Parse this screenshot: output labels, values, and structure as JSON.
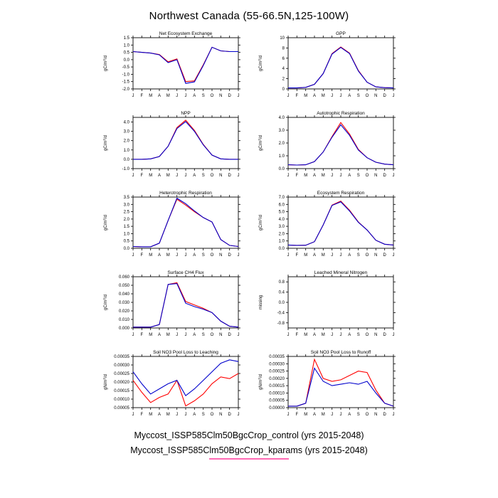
{
  "page_title": "Northwest Canada (55-66.5N,125-100W)",
  "months": [
    "J",
    "F",
    "M",
    "A",
    "M",
    "J",
    "J",
    "A",
    "S",
    "O",
    "N",
    "D",
    "J"
  ],
  "colors": {
    "control": "#ff0000",
    "kparams": "#0000cc",
    "legend_underline": "#ff69b4"
  },
  "chart_data": [
    {
      "type": "line",
      "title": "Net Ecosystem Exchange",
      "ylabel": "gC/m^2/d",
      "ylim": [
        -2.0,
        1.5
      ],
      "yticks": [
        1.5,
        1.0,
        0.5,
        0.0,
        -0.5,
        -1.0,
        -1.5,
        -2.0
      ],
      "ytick_labels": [
        "1.5",
        "1.0",
        "0.5",
        "0.0",
        "-0.5",
        "-1.0",
        "-1.5",
        "-2.0"
      ],
      "series": [
        {
          "name": "control",
          "color": "#ff0000",
          "values": [
            0.55,
            0.5,
            0.45,
            0.35,
            -0.15,
            0.05,
            -1.5,
            -1.45,
            -0.35,
            0.85,
            0.6,
            0.55,
            0.55
          ]
        },
        {
          "name": "kparams",
          "color": "#0000cc",
          "values": [
            0.55,
            0.5,
            0.45,
            0.33,
            -0.2,
            0.0,
            -1.62,
            -1.52,
            -0.4,
            0.85,
            0.6,
            0.55,
            0.55
          ]
        }
      ]
    },
    {
      "type": "line",
      "title": "GPP",
      "ylabel": "gC/m^2/d",
      "ylim": [
        0,
        10
      ],
      "yticks": [
        10,
        8,
        6,
        4,
        2,
        0
      ],
      "ytick_labels": [
        "10",
        "8",
        "6",
        "4",
        "2",
        "0"
      ],
      "series": [
        {
          "name": "control",
          "color": "#ff0000",
          "values": [
            0.2,
            0.2,
            0.3,
            0.9,
            3.0,
            6.9,
            8.2,
            7.0,
            3.6,
            1.3,
            0.4,
            0.25,
            0.2
          ]
        },
        {
          "name": "kparams",
          "color": "#0000cc",
          "values": [
            0.2,
            0.2,
            0.3,
            0.9,
            3.0,
            6.8,
            8.1,
            6.9,
            3.5,
            1.3,
            0.4,
            0.25,
            0.2
          ]
        }
      ]
    },
    {
      "type": "line",
      "title": "NPP",
      "ylabel": "gC/m^2/d",
      "ylim": [
        -1.0,
        4.5
      ],
      "yticks": [
        4.0,
        3.0,
        2.0,
        1.0,
        0.0,
        -1.0
      ],
      "ytick_labels": [
        "4.0",
        "3.0",
        "2.0",
        "1.0",
        "0.0",
        "-1.0"
      ],
      "series": [
        {
          "name": "control",
          "color": "#ff0000",
          "values": [
            0.0,
            0.0,
            0.05,
            0.3,
            1.4,
            3.4,
            4.2,
            3.1,
            1.6,
            0.45,
            0.05,
            0.0,
            0.0
          ]
        },
        {
          "name": "kparams",
          "color": "#0000cc",
          "values": [
            0.0,
            0.0,
            0.05,
            0.3,
            1.4,
            3.3,
            4.05,
            3.0,
            1.55,
            0.45,
            0.05,
            0.0,
            0.0
          ]
        }
      ]
    },
    {
      "type": "line",
      "title": "Autotrophic Respiration",
      "ylabel": "gC/m^2/d",
      "ylim": [
        0.0,
        4.0
      ],
      "yticks": [
        4.0,
        3.0,
        2.0,
        1.0,
        0.0
      ],
      "ytick_labels": [
        "4.0",
        "3.0",
        "2.0",
        "1.0",
        "0.0"
      ],
      "series": [
        {
          "name": "control",
          "color": "#ff0000",
          "values": [
            0.3,
            0.28,
            0.3,
            0.55,
            1.3,
            2.5,
            3.6,
            2.7,
            1.5,
            0.85,
            0.5,
            0.35,
            0.3
          ]
        },
        {
          "name": "kparams",
          "color": "#0000cc",
          "values": [
            0.3,
            0.28,
            0.3,
            0.55,
            1.3,
            2.45,
            3.42,
            2.6,
            1.45,
            0.85,
            0.5,
            0.35,
            0.3
          ]
        }
      ]
    },
    {
      "type": "line",
      "title": "Heterotrophic Respiration",
      "ylabel": "gC/m^2/d",
      "ylim": [
        0.0,
        3.5
      ],
      "yticks": [
        3.5,
        3.0,
        2.5,
        2.0,
        1.5,
        1.0,
        0.5,
        0.0
      ],
      "ytick_labels": [
        "3.5",
        "3.0",
        "2.5",
        "2.0",
        "1.5",
        "1.0",
        "0.5",
        "0.0"
      ],
      "series": [
        {
          "name": "control",
          "color": "#ff0000",
          "values": [
            0.12,
            0.1,
            0.1,
            0.35,
            1.9,
            3.35,
            2.95,
            2.5,
            2.1,
            1.8,
            0.6,
            0.2,
            0.12
          ]
        },
        {
          "name": "kparams",
          "color": "#0000cc",
          "values": [
            0.12,
            0.1,
            0.1,
            0.35,
            1.9,
            3.42,
            3.05,
            2.55,
            2.1,
            1.8,
            0.6,
            0.2,
            0.12
          ]
        }
      ]
    },
    {
      "type": "line",
      "title": "Ecosystem Respiration",
      "ylabel": "gC/m^2/d",
      "ylim": [
        0.0,
        7.0
      ],
      "yticks": [
        7.0,
        6.0,
        5.0,
        4.0,
        3.0,
        2.0,
        1.0,
        0.0
      ],
      "ytick_labels": [
        "7.0",
        "6.0",
        "5.0",
        "4.0",
        "3.0",
        "2.0",
        "1.0",
        "0.0"
      ],
      "series": [
        {
          "name": "control",
          "color": "#ff0000",
          "values": [
            0.45,
            0.4,
            0.42,
            0.9,
            3.2,
            5.9,
            6.45,
            5.2,
            3.6,
            2.5,
            1.1,
            0.55,
            0.45
          ]
        },
        {
          "name": "kparams",
          "color": "#0000cc",
          "values": [
            0.45,
            0.4,
            0.42,
            0.9,
            3.2,
            5.85,
            6.35,
            5.1,
            3.55,
            2.5,
            1.1,
            0.55,
            0.45
          ]
        }
      ]
    },
    {
      "type": "line",
      "title": "Surface CH4 Flux",
      "ylabel": "gC/m^2/d",
      "ylim": [
        0.0,
        0.06
      ],
      "yticks": [
        0.06,
        0.05,
        0.04,
        0.03,
        0.02,
        0.01,
        0.0
      ],
      "ytick_labels": [
        "0.060",
        "0.050",
        "0.040",
        "0.030",
        "0.020",
        "0.010",
        "0.000"
      ],
      "series": [
        {
          "name": "control",
          "color": "#ff0000",
          "values": [
            0.001,
            0.001,
            0.001,
            0.004,
            0.051,
            0.053,
            0.031,
            0.027,
            0.023,
            0.018,
            0.008,
            0.002,
            0.001
          ]
        },
        {
          "name": "kparams",
          "color": "#0000cc",
          "values": [
            0.001,
            0.001,
            0.001,
            0.004,
            0.051,
            0.052,
            0.029,
            0.025,
            0.022,
            0.018,
            0.008,
            0.002,
            0.001
          ]
        }
      ]
    },
    {
      "type": "line",
      "title": "Leached Mineral Nitrogen",
      "ylabel": "missing",
      "ylim": [
        -1.0,
        1.0
      ],
      "yticks": [
        0.8,
        0.4,
        0.0,
        -0.4,
        -0.8
      ],
      "ytick_labels": [
        "0.8",
        "0.4",
        "0.0",
        "-0.4",
        "-0.8"
      ],
      "series": []
    },
    {
      "type": "line",
      "title": "Soil NO3 Pool Loss to Leaching",
      "ylabel": "gN/m^2/d",
      "ylim": [
        5e-05,
        0.00035
      ],
      "yticks": [
        0.00035,
        0.0003,
        0.00025,
        0.0002,
        0.00015,
        0.0001,
        5e-05
      ],
      "ytick_labels": [
        "0.00035",
        "0.00030",
        "0.00025",
        "0.00020",
        "0.00015",
        "0.00010",
        "0.00005"
      ],
      "series": [
        {
          "name": "control",
          "color": "#ff0000",
          "values": [
            0.00021,
            0.00014,
            8e-05,
            0.00011,
            0.00013,
            0.00021,
            6e-05,
            9e-05,
            0.00013,
            0.00019,
            0.00023,
            0.00022,
            0.00025
          ]
        },
        {
          "name": "kparams",
          "color": "#0000cc",
          "values": [
            0.00026,
            0.00019,
            0.00013,
            0.00016,
            0.00019,
            0.00021,
            0.00012,
            0.00016,
            0.00021,
            0.00026,
            0.00031,
            0.00033,
            0.00032
          ]
        }
      ]
    },
    {
      "type": "line",
      "title": "Soil NO3 Pool Loss to Runoff",
      "ylabel": "gN/m^2/d",
      "ylim": [
        0.0,
        0.00035
      ],
      "yticks": [
        0.00035,
        0.0003,
        0.00025,
        0.0002,
        0.00015,
        0.0001,
        5e-05,
        0.0
      ],
      "ytick_labels": [
        "0.00035",
        "0.00030",
        "0.00025",
        "0.00020",
        "0.00015",
        "0.00010",
        "0.00005",
        "0.00000"
      ],
      "series": [
        {
          "name": "control",
          "color": "#ff0000",
          "values": [
            1e-05,
            1e-05,
            3e-05,
            0.00033,
            0.0002,
            0.00018,
            0.00019,
            0.00022,
            0.00025,
            0.00024,
            0.00012,
            3e-05,
            1e-05
          ]
        },
        {
          "name": "kparams",
          "color": "#0000cc",
          "values": [
            1e-05,
            1e-05,
            3e-05,
            0.00027,
            0.00018,
            0.00015,
            0.00016,
            0.00017,
            0.00016,
            0.00018,
            0.0001,
            3e-05,
            1e-05
          ]
        }
      ]
    }
  ],
  "legend": {
    "entries": [
      {
        "label": "Myccost_ISSP585Clm50BgcCrop_control (yrs 2015-2048)",
        "line_color": null
      },
      {
        "label": "Myccost_ISSP585Clm50BgcCrop_kparams (yrs 2015-2048)",
        "line_color": "#ff69b4"
      }
    ]
  }
}
